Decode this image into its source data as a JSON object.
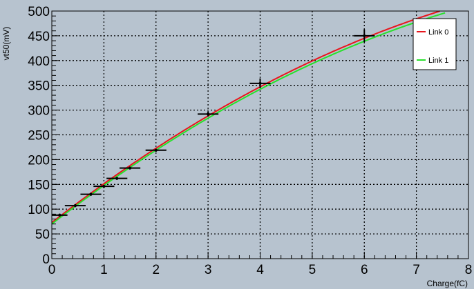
{
  "chart_data": {
    "type": "scatter",
    "title": "",
    "xlabel": "Charge(fC)",
    "ylabel": "vt50(mV)",
    "xlim": [
      0,
      8
    ],
    "ylim": [
      0,
      500
    ],
    "x_ticks": [
      0,
      1,
      2,
      3,
      4,
      5,
      6,
      7,
      8
    ],
    "y_ticks": [
      0,
      50,
      100,
      150,
      200,
      250,
      300,
      350,
      400,
      450,
      500
    ],
    "grid": true,
    "legend_position": "top-right",
    "points": [
      {
        "x": 0.15,
        "y": 88,
        "xerr": 0.15,
        "yerr": 3
      },
      {
        "x": 0.45,
        "y": 107,
        "xerr": 0.2,
        "yerr": 3
      },
      {
        "x": 0.75,
        "y": 130,
        "xerr": 0.2,
        "yerr": 3
      },
      {
        "x": 1.0,
        "y": 146,
        "xerr": 0.2,
        "yerr": 3
      },
      {
        "x": 1.25,
        "y": 162,
        "xerr": 0.2,
        "yerr": 3
      },
      {
        "x": 1.5,
        "y": 183,
        "xerr": 0.2,
        "yerr": 3
      },
      {
        "x": 2.0,
        "y": 219,
        "xerr": 0.2,
        "yerr": 3
      },
      {
        "x": 3.0,
        "y": 292,
        "xerr": 0.2,
        "yerr": 5
      },
      {
        "x": 4.0,
        "y": 354,
        "xerr": 0.2,
        "yerr": 10
      },
      {
        "x": 6.0,
        "y": 450,
        "xerr": 0.2,
        "yerr": 13
      }
    ],
    "series": [
      {
        "name": "Link 0",
        "color": "#e8161d",
        "fit": {
          "a": 73,
          "b": 81.5,
          "c": -3.25
        }
      },
      {
        "name": "Link 1",
        "color": "#27e12b",
        "fit": {
          "a": 70,
          "b": 81.0,
          "c": -3.25
        }
      }
    ]
  }
}
